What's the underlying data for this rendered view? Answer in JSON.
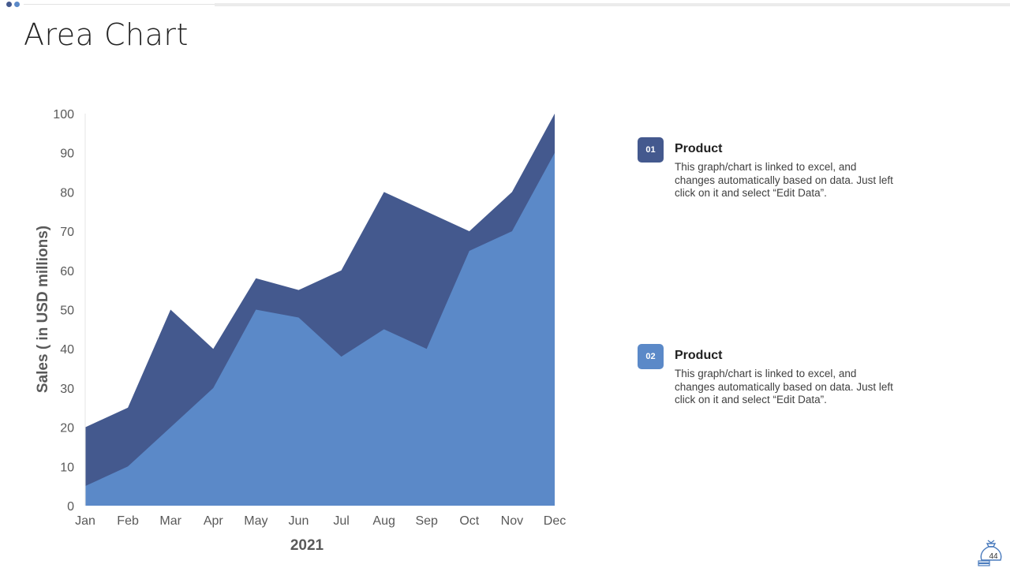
{
  "slide": {
    "title": "Area Chart",
    "page_number": "44"
  },
  "legend": [
    {
      "badge": "01",
      "heading": "Product",
      "description": "This graph/chart is linked to excel, and changes automatically based on data. Just left click on it and select “Edit Data”.",
      "color": "#44598e"
    },
    {
      "badge": "02",
      "heading": "Product",
      "description": "This graph/chart is linked to excel, and changes automatically based on data. Just left click on it and select “Edit Data”.",
      "color": "#5b89c8"
    }
  ],
  "chart_data": {
    "type": "area",
    "categories": [
      "Jan",
      "Feb",
      "Mar",
      "Apr",
      "May",
      "Jun",
      "Jul",
      "Aug",
      "Sep",
      "Oct",
      "Nov",
      "Dec"
    ],
    "series": [
      {
        "color": "#44598e",
        "values": [
          20,
          25,
          50,
          40,
          58,
          55,
          60,
          80,
          75,
          70,
          80,
          100
        ]
      },
      {
        "color": "#5b89c8",
        "values": [
          5,
          10,
          20,
          30,
          50,
          48,
          38,
          45,
          40,
          65,
          70,
          90
        ]
      }
    ],
    "xlabel": "2021",
    "ylabel": "Sales ( in USD millions)",
    "ylim": [
      0,
      100
    ],
    "yticks": [
      0,
      10,
      20,
      30,
      40,
      50,
      60,
      70,
      80,
      90,
      100
    ],
    "grid": false,
    "legend": "none"
  }
}
